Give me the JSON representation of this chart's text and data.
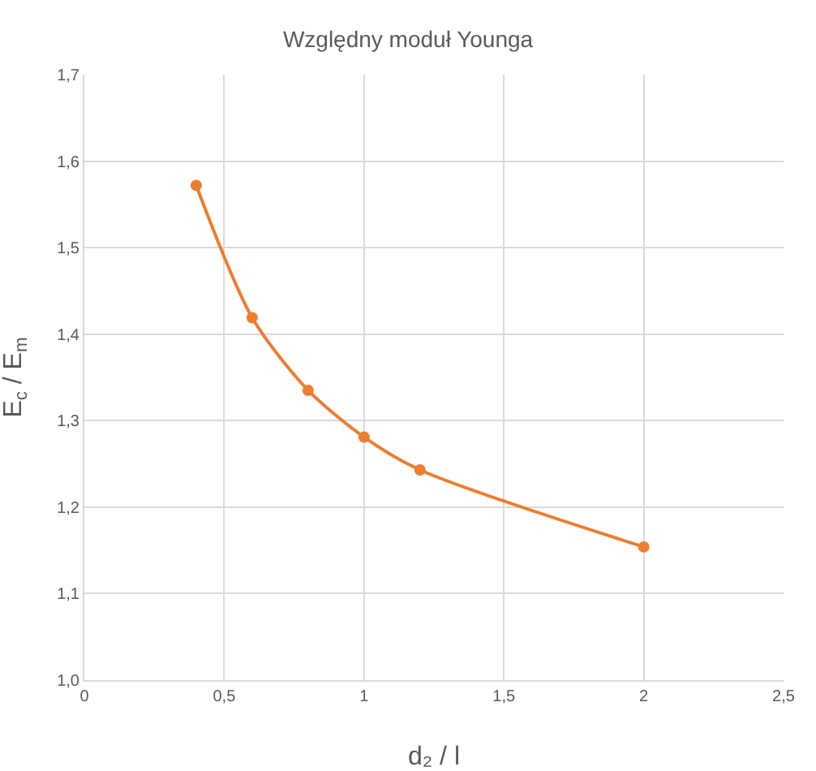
{
  "chart_data": {
    "type": "line",
    "title": "Względny moduł Younga",
    "xlabel": "d₂ / l",
    "ylabel": "E$_{c}$ / E$_{m}$",
    "x": [
      0.4,
      0.6,
      0.8,
      1.0,
      1.2,
      2.0
    ],
    "series": [
      {
        "color": "#ed7d31",
        "values": [
          1.572,
          1.419,
          1.335,
          1.281,
          1.243,
          1.154
        ]
      }
    ],
    "xlim": [
      0,
      2.5
    ],
    "xticks": [
      0,
      {
        "value": 0.5,
        "label": "0,5"
      },
      1,
      {
        "value": 1.5,
        "label": "1,5"
      },
      2,
      {
        "value": 2.5,
        "label": "2,5"
      }
    ],
    "ylim": [
      1.0,
      1.7
    ],
    "yticks": [
      {
        "value": 1.0,
        "label": "1,0"
      },
      {
        "value": 1.1,
        "label": "1,1"
      },
      {
        "value": 1.2,
        "label": "1,2"
      },
      {
        "value": 1.3,
        "label": "1,3"
      },
      {
        "value": 1.4,
        "label": "1,4"
      },
      {
        "value": 1.5,
        "label": "1,5"
      },
      {
        "value": 1.6,
        "label": "1,6"
      },
      {
        "value": 1.7,
        "label": "1,7"
      }
    ],
    "grid": true,
    "marker": "circle",
    "line_style": "solid"
  }
}
